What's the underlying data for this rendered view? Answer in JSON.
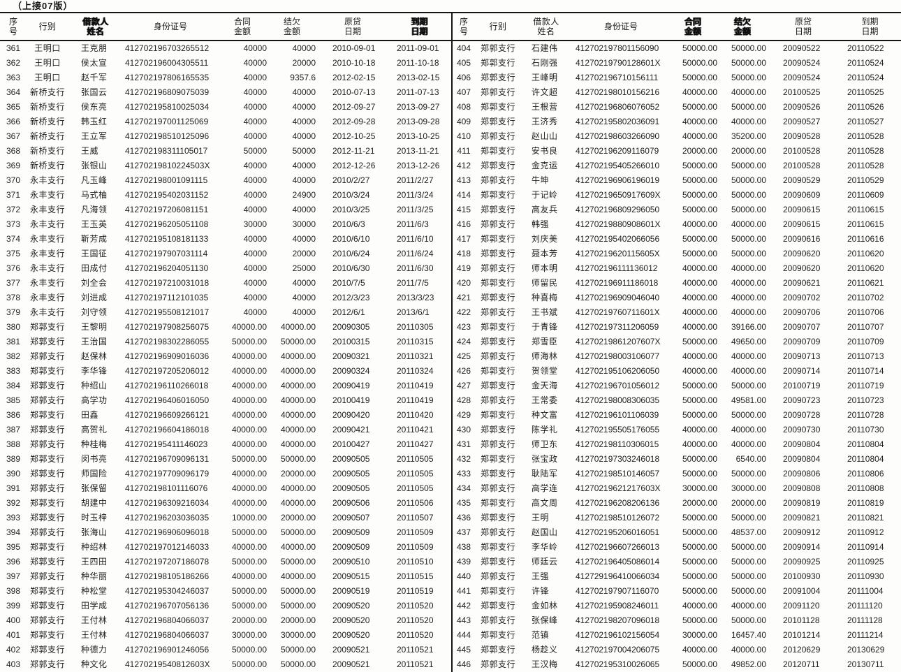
{
  "page": {
    "continuation_note": "（上接07版）"
  },
  "table": {
    "header_lines": [
      [
        "序",
        "号"
      ],
      [
        "行别"
      ],
      [
        "借款人",
        "姓名"
      ],
      [
        "身份证号"
      ],
      [
        "合同",
        "金额"
      ],
      [
        "结欠",
        "金额"
      ],
      [
        "原贷",
        "日期"
      ],
      [
        "到期",
        "日期"
      ]
    ],
    "left_smudged": [
      2,
      7
    ],
    "right_smudged": [
      4,
      5
    ],
    "column_names": [
      "serial",
      "branch",
      "borrower-name",
      "id-number",
      "contract-amount",
      "outstanding-amount",
      "loan-date",
      "due-date"
    ],
    "left_rows": [
      [
        "361",
        "王明口",
        "王克朋",
        "412702196703265512",
        "40000",
        "40000",
        "2010-09-01",
        "2011-09-01"
      ],
      [
        "362",
        "王明口",
        "侯太宣",
        "412702196004305511",
        "40000",
        "20000",
        "2010-10-18",
        "2011-10-18"
      ],
      [
        "363",
        "王明口",
        "赵千军",
        "412702197806165535",
        "40000",
        "9357.6",
        "2012-02-15",
        "2013-02-15"
      ],
      [
        "364",
        "新桥支行",
        "张国云",
        "412702196809075039",
        "40000",
        "40000",
        "2010-07-13",
        "2011-07-13"
      ],
      [
        "365",
        "新桥支行",
        "侯东亮",
        "412702195810025034",
        "40000",
        "40000",
        "2012-09-27",
        "2013-09-27"
      ],
      [
        "366",
        "新桥支行",
        "韩玉红",
        "412702197001125069",
        "40000",
        "40000",
        "2012-09-28",
        "2013-09-28"
      ],
      [
        "367",
        "新桥支行",
        "王立军",
        "412702198510125096",
        "40000",
        "40000",
        "2012-10-25",
        "2013-10-25"
      ],
      [
        "368",
        "新桥支行",
        "王威",
        "412702198311105017",
        "50000",
        "50000",
        "2012-11-21",
        "2013-11-21"
      ],
      [
        "369",
        "新桥支行",
        "张银山",
        "41270219810224503X",
        "40000",
        "40000",
        "2012-12-26",
        "2013-12-26"
      ],
      [
        "370",
        "永丰支行",
        "凡玉峰",
        "412702198001091115",
        "40000",
        "40000",
        "2010/2/27",
        "2011/2/27"
      ],
      [
        "371",
        "永丰支行",
        "马式柚",
        "412702195402031152",
        "40000",
        "24900",
        "2010/3/24",
        "2011/3/24"
      ],
      [
        "372",
        "永丰支行",
        "凡海领",
        "412702197206081151",
        "40000",
        "40000",
        "2010/3/25",
        "2011/3/25"
      ],
      [
        "373",
        "永丰支行",
        "王玉英",
        "412702196205051108",
        "30000",
        "30000",
        "2010/6/3",
        "2011/6/3"
      ],
      [
        "374",
        "永丰支行",
        "靳芳成",
        "412702195108181133",
        "40000",
        "40000",
        "2010/6/10",
        "2011/6/10"
      ],
      [
        "375",
        "永丰支行",
        "王国征",
        "412702197907031114",
        "40000",
        "20000",
        "2010/6/24",
        "2011/6/24"
      ],
      [
        "376",
        "永丰支行",
        "田成付",
        "412702196204051130",
        "40000",
        "25000",
        "2010/6/30",
        "2011/6/30"
      ],
      [
        "377",
        "永丰支行",
        "刘全会",
        "412702197210031018",
        "40000",
        "40000",
        "2010/7/5",
        "2011/7/5"
      ],
      [
        "378",
        "永丰支行",
        "刘进成",
        "412702197112101035",
        "40000",
        "40000",
        "2012/3/23",
        "2013/3/23"
      ],
      [
        "379",
        "永丰支行",
        "刘守领",
        "412702195508121017",
        "40000",
        "40000",
        "2012/6/1",
        "2013/6/1"
      ],
      [
        "380",
        "郑郭支行",
        "王黎明",
        "412702197908256075",
        "40000.00",
        "40000.00",
        "20090305",
        "20110305"
      ],
      [
        "381",
        "郑郭支行",
        "王治国",
        "412702198302286055",
        "50000.00",
        "50000.00",
        "20100315",
        "20110315"
      ],
      [
        "382",
        "郑郭支行",
        "赵保林",
        "412702196909016036",
        "40000.00",
        "40000.00",
        "20090321",
        "20110321"
      ],
      [
        "383",
        "郑郭支行",
        "李华锋",
        "412702197205206012",
        "40000.00",
        "40000.00",
        "20090324",
        "20110324"
      ],
      [
        "384",
        "郑郭支行",
        "种绍山",
        "412702196110266018",
        "40000.00",
        "40000.00",
        "20090419",
        "20110419"
      ],
      [
        "385",
        "郑郭支行",
        "高学功",
        "412702196406016050",
        "40000.00",
        "40000.00",
        "20100419",
        "20110419"
      ],
      [
        "386",
        "郑郭支行",
        "田鑫",
        "412702196609266121",
        "40000.00",
        "40000.00",
        "20090420",
        "20110420"
      ],
      [
        "387",
        "郑郭支行",
        "高贺礼",
        "412702196604186018",
        "40000.00",
        "40000.00",
        "20090421",
        "20110421"
      ],
      [
        "388",
        "郑郭支行",
        "种桂梅",
        "412702195411146023",
        "40000.00",
        "40000.00",
        "20100427",
        "20110427"
      ],
      [
        "389",
        "郑郭支行",
        "闵书亮",
        "412702196709096131",
        "50000.00",
        "50000.00",
        "20090505",
        "20110505"
      ],
      [
        "390",
        "郑郭支行",
        "师国险",
        "412702197709096179",
        "40000.00",
        "20000.00",
        "20090505",
        "20110505"
      ],
      [
        "391",
        "郑郭支行",
        "张保留",
        "412702198101116076",
        "40000.00",
        "40000.00",
        "20090505",
        "20110505"
      ],
      [
        "392",
        "郑郭支行",
        "胡建中",
        "412702196309216034",
        "40000.00",
        "40000.00",
        "20090506",
        "20110506"
      ],
      [
        "393",
        "郑郭支行",
        "时玉梓",
        "412702196203036035",
        "10000.00",
        "20000.00",
        "20090507",
        "20110507"
      ],
      [
        "394",
        "郑郭支行",
        "张海山",
        "412702196906096018",
        "50000.00",
        "50000.00",
        "20090509",
        "20110509"
      ],
      [
        "395",
        "郑郭支行",
        "种绍林",
        "412702197012146033",
        "40000.00",
        "40000.00",
        "20090509",
        "20110509"
      ],
      [
        "396",
        "郑郭支行",
        "王四田",
        "412702197207186078",
        "50000.00",
        "50000.00",
        "20090510",
        "20110510"
      ],
      [
        "397",
        "郑郭支行",
        "种华丽",
        "412702198105186266",
        "40000.00",
        "40000.00",
        "20090515",
        "20110515"
      ],
      [
        "398",
        "郑郭支行",
        "种松堂",
        "412702195304246037",
        "50000.00",
        "50000.00",
        "20090519",
        "20110519"
      ],
      [
        "399",
        "郑郭支行",
        "田学成",
        "412702196707056136",
        "50000.00",
        "50000.00",
        "20090520",
        "20110520"
      ],
      [
        "400",
        "郑郭支行",
        "王付林",
        "412702196804066037",
        "20000.00",
        "20000.00",
        "20090520",
        "20110520"
      ],
      [
        "401",
        "郑郭支行",
        "王付林",
        "412702196804066037",
        "30000.00",
        "30000.00",
        "20090520",
        "20110520"
      ],
      [
        "402",
        "郑郭支行",
        "种德力",
        "412702196901246056",
        "50000.00",
        "50000.00",
        "20090521",
        "20110521"
      ],
      [
        "403",
        "郑郭支行",
        "种文化",
        "41270219540812603X",
        "50000.00",
        "50000.00",
        "20090521",
        "20110521"
      ]
    ],
    "right_rows": [
      [
        "404",
        "郑郭支行",
        "石建伟",
        "412702197801156090",
        "50000.00",
        "50000.00",
        "20090522",
        "20110522"
      ],
      [
        "405",
        "郑郭支行",
        "石刚强",
        "41270219790128601X",
        "50000.00",
        "50000.00",
        "20090524",
        "20110524"
      ],
      [
        "406",
        "郑郭支行",
        "王峰明",
        "412702196710156111",
        "50000.00",
        "50000.00",
        "20090524",
        "20110524"
      ],
      [
        "407",
        "郑郭支行",
        "许文超",
        "412702198010156216",
        "40000.00",
        "40000.00",
        "20100525",
        "20110525"
      ],
      [
        "408",
        "郑郭支行",
        "王根营",
        "412702196806076052",
        "50000.00",
        "50000.00",
        "20090526",
        "20110526"
      ],
      [
        "409",
        "郑郭支行",
        "王济秀",
        "412702195802036091",
        "40000.00",
        "40000.00",
        "20090527",
        "20110527"
      ],
      [
        "410",
        "郑郭支行",
        "赵山山",
        "412702198603266090",
        "40000.00",
        "35200.00",
        "20090528",
        "20110528"
      ],
      [
        "411",
        "郑郭支行",
        "安书良",
        "412702196209116079",
        "20000.00",
        "20000.00",
        "20100528",
        "20110528"
      ],
      [
        "412",
        "郑郭支行",
        "金克运",
        "412702195405266010",
        "50000.00",
        "50000.00",
        "20100528",
        "20110528"
      ],
      [
        "413",
        "郑郭支行",
        "牛坤",
        "412702196906196019",
        "50000.00",
        "50000.00",
        "20090529",
        "20110529"
      ],
      [
        "414",
        "郑郭支行",
        "于记岭",
        "41270219650917609X",
        "50000.00",
        "50000.00",
        "20090609",
        "20110609"
      ],
      [
        "415",
        "郑郭支行",
        "高友兵",
        "412702196809296050",
        "50000.00",
        "50000.00",
        "20090615",
        "20110615"
      ],
      [
        "416",
        "郑郭支行",
        "韩强",
        "41270219880908601X",
        "40000.00",
        "40000.00",
        "20090615",
        "20110615"
      ],
      [
        "417",
        "郑郭支行",
        "刘庆美",
        "412702195402066056",
        "50000.00",
        "50000.00",
        "20090616",
        "20110616"
      ],
      [
        "418",
        "郑郭支行",
        "聂本芳",
        "41270219620115605X",
        "50000.00",
        "50000.00",
        "20090620",
        "20110620"
      ],
      [
        "419",
        "郑郭支行",
        "师本明",
        "412702196111136012",
        "40000.00",
        "40000.00",
        "20090620",
        "20110620"
      ],
      [
        "420",
        "郑郭支行",
        "师留民",
        "412702196911186018",
        "40000.00",
        "40000.00",
        "20090621",
        "20110621"
      ],
      [
        "421",
        "郑郭支行",
        "种喜梅",
        "412702196909046040",
        "40000.00",
        "40000.00",
        "20090702",
        "20110702"
      ],
      [
        "422",
        "郑郭支行",
        "王书斌",
        "41270219760711601X",
        "40000.00",
        "40000.00",
        "20090706",
        "20110706"
      ],
      [
        "423",
        "郑郭支行",
        "于青锋",
        "412702197311206059",
        "40000.00",
        "39166.00",
        "20090707",
        "20110707"
      ],
      [
        "424",
        "郑郭支行",
        "郑雪臣",
        "41270219861207607X",
        "50000.00",
        "49650.00",
        "20090709",
        "20110709"
      ],
      [
        "425",
        "郑郭支行",
        "师海林",
        "412702198003106077",
        "40000.00",
        "40000.00",
        "20090713",
        "20110713"
      ],
      [
        "426",
        "郑郭支行",
        "贺领堂",
        "412702195106206050",
        "40000.00",
        "40000.00",
        "20090714",
        "20110714"
      ],
      [
        "427",
        "郑郭支行",
        "金天海",
        "412702196701056012",
        "50000.00",
        "50000.00",
        "20100719",
        "20110719"
      ],
      [
        "428",
        "郑郭支行",
        "王常委",
        "412702198008306035",
        "50000.00",
        "49581.00",
        "20090723",
        "20110723"
      ],
      [
        "429",
        "郑郭支行",
        "种文富",
        "412702196101106039",
        "50000.00",
        "50000.00",
        "20090728",
        "20110728"
      ],
      [
        "430",
        "郑郭支行",
        "陈学礼",
        "412702195505176055",
        "40000.00",
        "40000.00",
        "20090730",
        "20110730"
      ],
      [
        "431",
        "郑郭支行",
        "师卫东",
        "412702198110306015",
        "40000.00",
        "40000.00",
        "20090804",
        "20110804"
      ],
      [
        "432",
        "郑郭支行",
        "张宝政",
        "412702197303246018",
        "50000.00",
        "6540.00",
        "20090804",
        "20110804"
      ],
      [
        "433",
        "郑郭支行",
        "耿陆军",
        "412702198510146057",
        "50000.00",
        "50000.00",
        "20090806",
        "20110806"
      ],
      [
        "434",
        "郑郭支行",
        "高学连",
        "41270219621217603X",
        "30000.00",
        "30000.00",
        "20090808",
        "20110808"
      ],
      [
        "435",
        "郑郭支行",
        "高文周",
        "412702196208206136",
        "20000.00",
        "20000.00",
        "20090819",
        "20110819"
      ],
      [
        "436",
        "郑郭支行",
        "王明",
        "412702198510126072",
        "50000.00",
        "50000.00",
        "20090821",
        "20110821"
      ],
      [
        "437",
        "郑郭支行",
        "赵国山",
        "412702195206016051",
        "50000.00",
        "48537.00",
        "20090912",
        "20110912"
      ],
      [
        "438",
        "郑郭支行",
        "李华岭",
        "412702196607266013",
        "50000.00",
        "50000.00",
        "20090914",
        "20110914"
      ],
      [
        "439",
        "郑郭支行",
        "师廷云",
        "412702196405086014",
        "50000.00",
        "50000.00",
        "20090925",
        "20110925"
      ],
      [
        "440",
        "郑郭支行",
        "王强",
        "412729196410066034",
        "50000.00",
        "50000.00",
        "20100930",
        "20110930"
      ],
      [
        "441",
        "郑郭支行",
        "许锋",
        "412702197907116070",
        "50000.00",
        "50000.00",
        "20091004",
        "20111004"
      ],
      [
        "442",
        "郑郭支行",
        "金如林",
        "412702195908246011",
        "40000.00",
        "40000.00",
        "20091120",
        "20111120"
      ],
      [
        "443",
        "郑郭支行",
        "张保峰",
        "412702198207096018",
        "50000.00",
        "50000.00",
        "20101128",
        "20111128"
      ],
      [
        "444",
        "郑郭支行",
        "范镇",
        "412702196102156054",
        "30000.00",
        "16457.40",
        "20101214",
        "20111214"
      ],
      [
        "445",
        "郑郭支行",
        "杨趁义",
        "412702197004206075",
        "40000.00",
        "40000.00",
        "20120629",
        "20130629"
      ],
      [
        "446",
        "郑郭支行",
        "王汉梅",
        "412702195310026065",
        "50000.00",
        "49852.00",
        "20120711",
        "20130711"
      ]
    ]
  }
}
